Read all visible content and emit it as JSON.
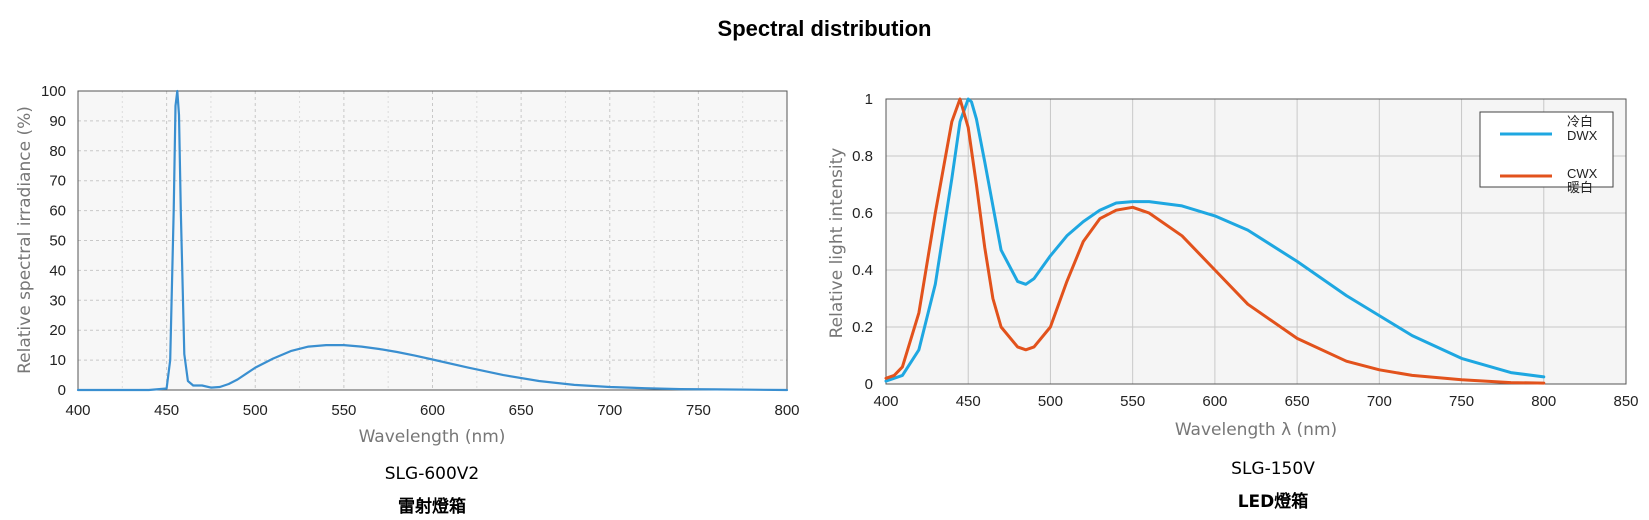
{
  "page": {
    "title": "Spectral distribution"
  },
  "chart_data": [
    {
      "type": "line",
      "caption_model": "SLG-600V2",
      "caption_desc": "雷射燈箱",
      "xlabel": "Wavelength (nm)",
      "ylabel": "Relative spectral irradiance (%)",
      "xlim": [
        400,
        800
      ],
      "ylim": [
        0,
        100
      ],
      "xticks": [
        400,
        450,
        500,
        550,
        600,
        650,
        700,
        750,
        800
      ],
      "yticks": [
        0,
        10,
        20,
        30,
        40,
        50,
        60,
        70,
        80,
        90,
        100
      ],
      "grid": true,
      "series": [
        {
          "color": "#3a8fd0",
          "x": [
            400,
            440,
            450,
            452,
            454,
            455,
            456,
            457,
            458,
            460,
            462,
            465,
            468,
            470,
            475,
            480,
            485,
            490,
            495,
            500,
            510,
            520,
            530,
            540,
            550,
            560,
            570,
            580,
            590,
            600,
            620,
            640,
            660,
            680,
            700,
            720,
            740,
            760,
            780,
            800
          ],
          "y": [
            0,
            0,
            0.5,
            10,
            60,
            95,
            100,
            92,
            60,
            12,
            3,
            1.5,
            1.5,
            1.5,
            0.8,
            1,
            2,
            3.5,
            5.5,
            7.5,
            10.5,
            13,
            14.5,
            15,
            15,
            14.5,
            13.7,
            12.7,
            11.5,
            10.2,
            7.5,
            5,
            3,
            1.7,
            1,
            0.6,
            0.3,
            0.2,
            0.1,
            0
          ]
        }
      ]
    },
    {
      "type": "line",
      "caption_model": "SLG-150V",
      "caption_desc": "LED燈箱",
      "xlabel": "Wavelength λ (nm)",
      "ylabel": "Relative light intensity",
      "xlim": [
        400,
        850
      ],
      "ylim": [
        0,
        1
      ],
      "xticks": [
        400,
        450,
        500,
        550,
        600,
        650,
        700,
        750,
        800,
        850
      ],
      "yticks": [
        0,
        0.2,
        0.4,
        0.6,
        0.8,
        1
      ],
      "grid": true,
      "legend": "top-right",
      "series": [
        {
          "name": "DWX",
          "name_zh": "冷白",
          "color": "#1ea7e1",
          "x": [
            400,
            410,
            420,
            430,
            440,
            445,
            450,
            452,
            455,
            460,
            470,
            480,
            485,
            490,
            500,
            510,
            520,
            530,
            540,
            550,
            560,
            580,
            600,
            620,
            650,
            680,
            700,
            720,
            750,
            780,
            800
          ],
          "y": [
            0.01,
            0.03,
            0.12,
            0.35,
            0.72,
            0.92,
            1.0,
            0.99,
            0.93,
            0.78,
            0.47,
            0.36,
            0.35,
            0.37,
            0.45,
            0.52,
            0.57,
            0.61,
            0.635,
            0.64,
            0.64,
            0.625,
            0.59,
            0.54,
            0.43,
            0.31,
            0.24,
            0.17,
            0.09,
            0.04,
            0.025
          ]
        },
        {
          "name": "CWX",
          "name_zh": "暖白",
          "color": "#e2521c",
          "x": [
            400,
            405,
            410,
            420,
            430,
            440,
            445,
            450,
            455,
            460,
            465,
            470,
            480,
            485,
            490,
            500,
            510,
            520,
            530,
            540,
            550,
            560,
            580,
            600,
            620,
            650,
            680,
            700,
            720,
            750,
            780,
            800
          ],
          "y": [
            0.02,
            0.03,
            0.06,
            0.25,
            0.6,
            0.92,
            1.0,
            0.9,
            0.7,
            0.48,
            0.3,
            0.2,
            0.13,
            0.12,
            0.13,
            0.2,
            0.36,
            0.5,
            0.58,
            0.61,
            0.62,
            0.6,
            0.52,
            0.4,
            0.28,
            0.16,
            0.08,
            0.05,
            0.03,
            0.015,
            0.005,
            0.003
          ]
        }
      ]
    }
  ]
}
